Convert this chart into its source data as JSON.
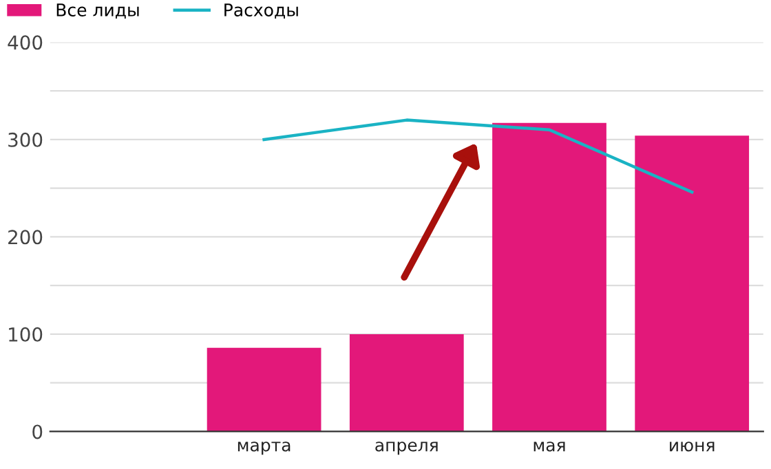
{
  "chart_data": {
    "type": "bar",
    "categories": [
      null,
      "марта",
      "апреля",
      "мая",
      "июня"
    ],
    "series": [
      {
        "name": "Все лиды",
        "color": "#e3187a",
        "values": [
          null,
          86,
          100,
          317,
          304
        ]
      },
      {
        "name": "Расходы",
        "type": "line",
        "color": "#1ab3c4",
        "values": [
          null,
          300,
          320,
          310,
          246
        ]
      }
    ],
    "ylim": [
      0,
      400
    ],
    "yticks": [
      0,
      {
        "value": 50,
        "label": null
      },
      100,
      {
        "value": 150,
        "label": null
      },
      200,
      {
        "value": 250,
        "label": null
      },
      300,
      {
        "value": 350,
        "label": null
      },
      400
    ],
    "grid": "y",
    "legend": "top left",
    "marker": "none",
    "line_style": "solid"
  }
}
